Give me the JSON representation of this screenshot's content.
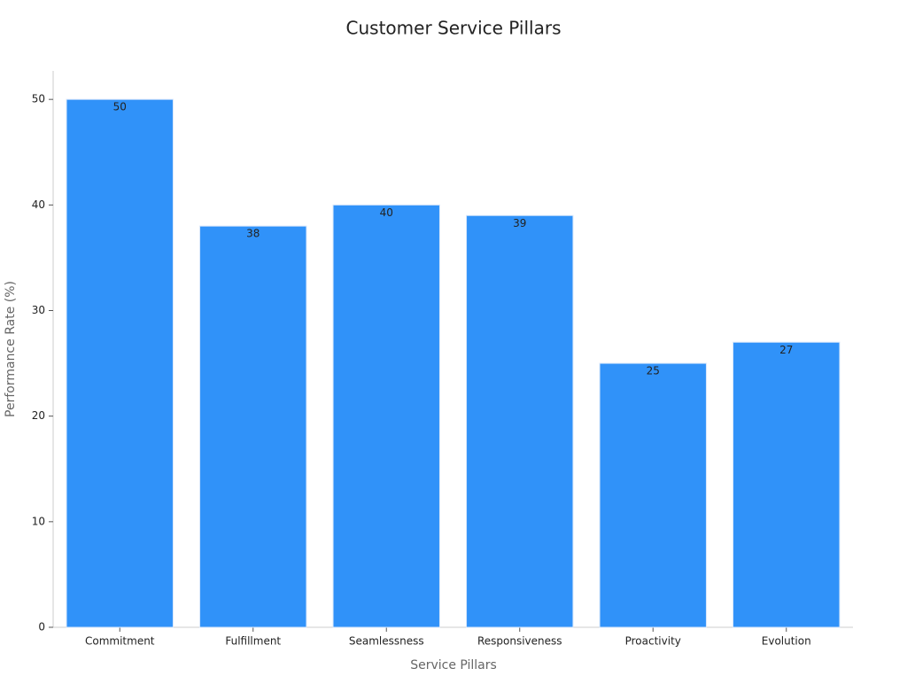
{
  "chart_data": {
    "type": "bar",
    "title": "Customer Service Pillars",
    "x_label": "Service Pillars",
    "y_label": "Performance Rate (%)",
    "categories": [
      "Commitment",
      "Fulfillment",
      "Seamlessness",
      "Responsiveness",
      "Proactivity",
      "Evolution"
    ],
    "values": [
      50,
      38,
      40,
      39,
      25,
      27
    ],
    "color": "#3092f9",
    "ylim": [
      0,
      52.7
    ],
    "yticks": [
      0,
      10,
      20,
      30,
      40,
      50
    ],
    "grid": false
  }
}
